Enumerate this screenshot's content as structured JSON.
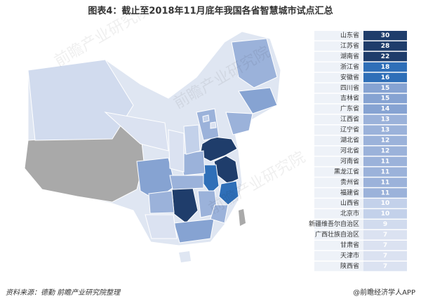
{
  "title": "图表4：截止至2018年11月底年我国各省智慧城市试点汇总",
  "watermark": "前瞻产业研究院",
  "table": {
    "rows": [
      {
        "name": "山东省",
        "value": 30,
        "color": "#1f3d6b"
      },
      {
        "name": "江苏省",
        "value": 28,
        "color": "#1f3d6b"
      },
      {
        "name": "湖南省",
        "value": 22,
        "color": "#1f3d6b"
      },
      {
        "name": "浙江省",
        "value": 18,
        "color": "#2f6fb8"
      },
      {
        "name": "安徽省",
        "value": 16,
        "color": "#2f6fb8"
      },
      {
        "name": "四川省",
        "value": 15,
        "color": "#86a3d2"
      },
      {
        "name": "吉林省",
        "value": 15,
        "color": "#86a3d2"
      },
      {
        "name": "广东省",
        "value": 14,
        "color": "#86a3d2"
      },
      {
        "name": "江西省",
        "value": 13,
        "color": "#9bb2da"
      },
      {
        "name": "辽宁省",
        "value": 13,
        "color": "#9bb2da"
      },
      {
        "name": "湖北省",
        "value": 12,
        "color": "#9bb2da"
      },
      {
        "name": "河北省",
        "value": 12,
        "color": "#9bb2da"
      },
      {
        "name": "河南省",
        "value": 11,
        "color": "#9bb2da"
      },
      {
        "name": "黑龙江省",
        "value": 11,
        "color": "#9bb2da"
      },
      {
        "name": "贵州省",
        "value": 11,
        "color": "#9bb2da"
      },
      {
        "name": "福建省",
        "value": 11,
        "color": "#9bb2da"
      },
      {
        "name": "山西省",
        "value": 10,
        "color": "#c3d1ea"
      },
      {
        "name": "北京市",
        "value": 10,
        "color": "#c3d1ea"
      },
      {
        "name": "新疆维吾尔自治区",
        "value": 9,
        "color": "#d1dbee"
      },
      {
        "name": "广西壮族自治区",
        "value": 7,
        "color": "#dbe2f1"
      },
      {
        "name": "甘肃省",
        "value": 7,
        "color": "#dbe2f1"
      },
      {
        "name": "天津市",
        "value": 7,
        "color": "#dbe2f1"
      },
      {
        "name": "陕西省",
        "value": 7,
        "color": "#dbe2f1"
      }
    ]
  },
  "footer": {
    "source": "资料来源：德勤 前瞻产业研究院整理",
    "brand": "@前瞻经济学人APP"
  }
}
